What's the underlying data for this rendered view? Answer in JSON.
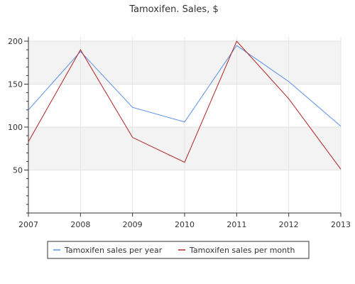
{
  "chart_data": {
    "type": "line",
    "title": "Tamoxifen. Sales, $",
    "x": [
      "2007",
      "2008",
      "2009",
      "2010",
      "2011",
      "2012",
      "2013"
    ],
    "ylim": [
      0,
      200
    ],
    "yticks": [
      50,
      100,
      150,
      200
    ],
    "grid": true,
    "legend": "bottom",
    "series": [
      {
        "name": "Tamoxifen sales per year",
        "color": "#5b8fe8",
        "values": [
          120,
          188,
          123,
          106,
          195,
          153,
          101
        ]
      },
      {
        "name": "Tamoxifen sales per month",
        "color": "#b22222",
        "values": [
          83,
          190,
          88,
          59,
          200,
          133,
          51
        ]
      }
    ]
  }
}
